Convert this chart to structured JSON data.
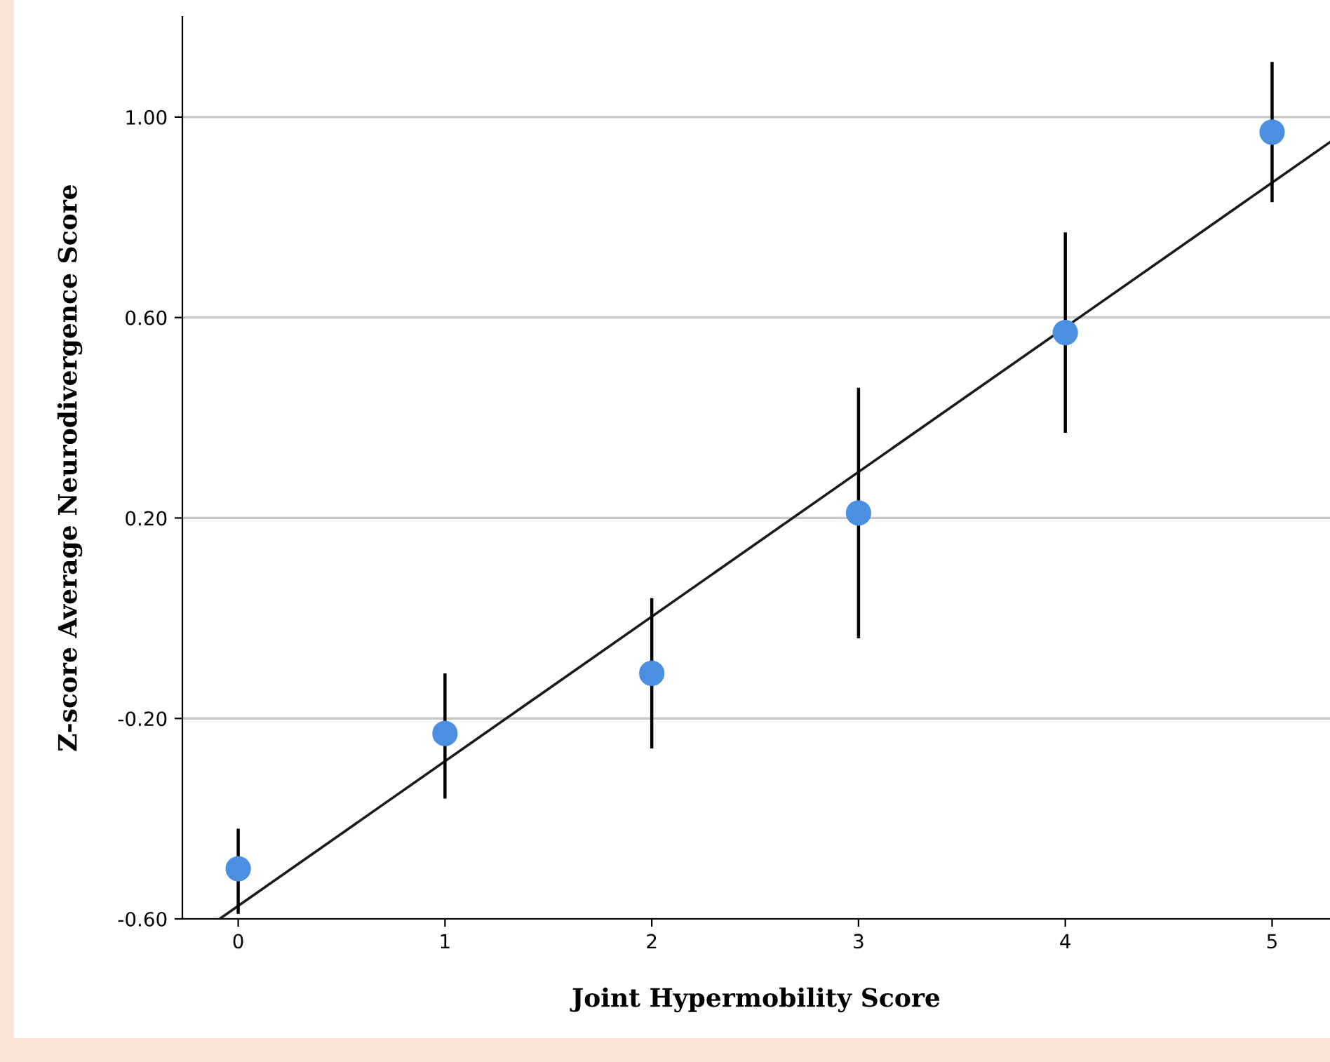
{
  "chart_data": {
    "type": "scatter",
    "xlabel": "Joint Hypermobility Score",
    "ylabel": "Z-score Average Neurodivergence Score",
    "series": [
      {
        "color": "#4a8fe0",
        "x": [
          0,
          1,
          2,
          3,
          4,
          5
        ],
        "values": [
          -0.5,
          -0.23,
          -0.11,
          0.21,
          0.57,
          0.97
        ],
        "errors": [
          [
            -0.59,
            -0.42
          ],
          [
            -0.36,
            -0.11
          ],
          [
            -0.26,
            0.04
          ],
          [
            -0.04,
            0.46
          ],
          [
            0.37,
            0.77
          ],
          [
            0.83,
            1.11
          ]
        ],
        "marker": "circle"
      },
      {
        "type": "line",
        "color": "#1a1a1a",
        "x": [
          -0.09,
          5.28
        ],
        "values": [
          -0.6,
          0.95
        ],
        "line_style": "solid"
      }
    ],
    "xlim": [
      -0.27,
      5.28
    ],
    "xticks": [
      0,
      1,
      2,
      3,
      4,
      5
    ],
    "ylim": [
      -0.6,
      1.2
    ],
    "yticks": [
      {
        "value": -0.6,
        "label": "-0.60"
      },
      {
        "value": -0.2,
        "label": "-0.20"
      },
      {
        "value": 0.2,
        "label": "0.20"
      },
      {
        "value": 0.6,
        "label": "0.60"
      },
      {
        "value": 1.0,
        "label": "1.00"
      }
    ],
    "grid": "y"
  }
}
